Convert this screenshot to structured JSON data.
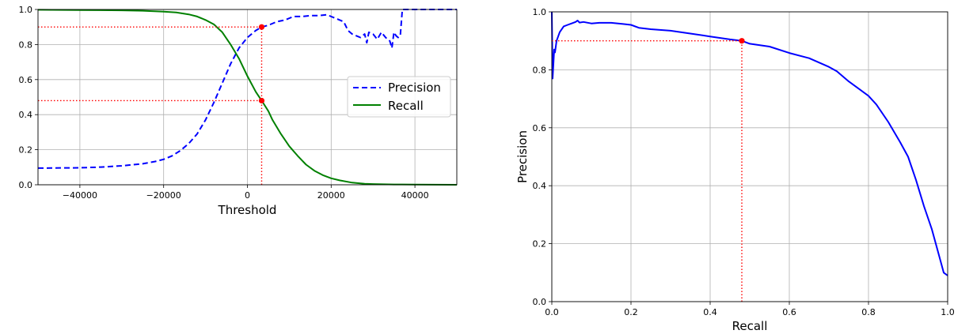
{
  "chart_data": [
    {
      "type": "line",
      "xlabel": "Threshold",
      "ylabel": "",
      "xlim": [
        -50000,
        50000
      ],
      "ylim": [
        0,
        1
      ],
      "xticks": [
        -40000,
        -20000,
        0,
        20000,
        40000
      ],
      "xtick_labels": [
        "−40000",
        "−20000",
        "0",
        "20000",
        "40000"
      ],
      "yticks": [
        0,
        0.2,
        0.4,
        0.6,
        0.8,
        1.0
      ],
      "ytick_labels": [
        "0.0",
        "0.2",
        "0.4",
        "0.6",
        "0.8",
        "1.0"
      ],
      "grid": true,
      "legend_position": "center-right",
      "series": [
        {
          "name": "Precision",
          "color": "#0000ff",
          "style": "dashed",
          "x": [
            -50000,
            -40000,
            -35000,
            -30000,
            -25000,
            -22000,
            -20000,
            -18000,
            -16000,
            -14000,
            -12000,
            -10000,
            -8000,
            -6000,
            -4000,
            -2000,
            0,
            2000,
            3400,
            5000,
            7000,
            9000,
            11000,
            13000,
            15000,
            17000,
            19000,
            21000,
            23000,
            24000,
            25000,
            26000,
            27000,
            28000,
            28500,
            29000,
            30000,
            31000,
            32000,
            33000,
            34000,
            34500,
            35000,
            35500,
            36000,
            36500,
            37000,
            40000,
            45000,
            50000
          ],
          "y": [
            0.095,
            0.097,
            0.101,
            0.108,
            0.12,
            0.133,
            0.145,
            0.165,
            0.195,
            0.235,
            0.29,
            0.37,
            0.47,
            0.58,
            0.69,
            0.78,
            0.84,
            0.88,
            0.9,
            0.91,
            0.93,
            0.94,
            0.96,
            0.96,
            0.965,
            0.965,
            0.97,
            0.95,
            0.93,
            0.88,
            0.86,
            0.85,
            0.84,
            0.86,
            0.81,
            0.87,
            0.86,
            0.83,
            0.87,
            0.84,
            0.82,
            0.78,
            0.87,
            0.85,
            0.84,
            0.85,
            1.0,
            1.0,
            1.0,
            1.0
          ]
        },
        {
          "name": "Recall",
          "color": "#008000",
          "style": "solid",
          "x": [
            -50000,
            -40000,
            -30000,
            -25000,
            -20000,
            -17000,
            -14000,
            -12000,
            -10000,
            -8000,
            -6000,
            -4000,
            -2000,
            0,
            2000,
            3400,
            5000,
            6000,
            8000,
            10000,
            12000,
            14000,
            16000,
            18000,
            20000,
            22000,
            25000,
            28000,
            30000,
            35000,
            40000,
            45000,
            50000
          ],
          "y": [
            0.998,
            0.997,
            0.995,
            0.993,
            0.988,
            0.983,
            0.972,
            0.96,
            0.94,
            0.915,
            0.87,
            0.8,
            0.72,
            0.62,
            0.53,
            0.48,
            0.42,
            0.37,
            0.29,
            0.22,
            0.165,
            0.115,
            0.08,
            0.055,
            0.037,
            0.025,
            0.012,
            0.006,
            0.004,
            0.002,
            0.001,
            0.0005,
            0.0002
          ]
        }
      ],
      "markers": [
        {
          "x": 3400,
          "y": 0.9,
          "color": "#ff0000"
        },
        {
          "x": 3400,
          "y": 0.48,
          "color": "#ff0000"
        }
      ],
      "reference_lines": [
        {
          "kind": "vertical",
          "x": 3400,
          "y_from": 0,
          "y_to": 0.9,
          "color": "#ff0000",
          "style": "dotted"
        },
        {
          "kind": "horizontal",
          "y": 0.9,
          "x_from": -50000,
          "x_to": 3400,
          "color": "#ff0000",
          "style": "dotted"
        },
        {
          "kind": "horizontal",
          "y": 0.48,
          "x_from": -50000,
          "x_to": 3400,
          "color": "#ff0000",
          "style": "dotted"
        }
      ]
    },
    {
      "type": "line",
      "xlabel": "Recall",
      "ylabel": "Precision",
      "xlim": [
        0,
        1
      ],
      "ylim": [
        0,
        1
      ],
      "xticks": [
        0,
        0.2,
        0.4,
        0.6,
        0.8,
        1.0
      ],
      "xtick_labels": [
        "0.0",
        "0.2",
        "0.4",
        "0.6",
        "0.8",
        "1.0"
      ],
      "yticks": [
        0,
        0.2,
        0.4,
        0.6,
        0.8,
        1.0
      ],
      "ytick_labels": [
        "0.0",
        "0.2",
        "0.4",
        "0.6",
        "0.8",
        "1.0"
      ],
      "grid": true,
      "series": [
        {
          "color": "#0000ff",
          "style": "solid",
          "x": [
            0.0,
            0.002,
            0.004,
            0.006,
            0.008,
            0.012,
            0.02,
            0.03,
            0.04,
            0.05,
            0.06,
            0.065,
            0.07,
            0.08,
            0.1,
            0.12,
            0.15,
            0.18,
            0.2,
            0.22,
            0.25,
            0.3,
            0.35,
            0.4,
            0.45,
            0.48,
            0.5,
            0.55,
            0.6,
            0.65,
            0.7,
            0.72,
            0.75,
            0.78,
            0.8,
            0.82,
            0.85,
            0.88,
            0.9,
            0.92,
            0.94,
            0.96,
            0.98,
            0.99,
            1.0
          ],
          "y": [
            1.0,
            0.77,
            0.82,
            0.87,
            0.86,
            0.9,
            0.93,
            0.95,
            0.955,
            0.96,
            0.965,
            0.97,
            0.963,
            0.965,
            0.96,
            0.962,
            0.962,
            0.958,
            0.955,
            0.945,
            0.94,
            0.935,
            0.925,
            0.915,
            0.905,
            0.9,
            0.89,
            0.88,
            0.858,
            0.84,
            0.81,
            0.795,
            0.76,
            0.73,
            0.71,
            0.68,
            0.62,
            0.55,
            0.5,
            0.42,
            0.33,
            0.25,
            0.15,
            0.1,
            0.09
          ]
        }
      ],
      "markers": [
        {
          "x": 0.48,
          "y": 0.9,
          "color": "#ff0000"
        }
      ],
      "reference_lines": [
        {
          "kind": "vertical",
          "x": 0.48,
          "y_from": 0,
          "y_to": 0.9,
          "color": "#ff0000",
          "style": "dotted"
        },
        {
          "kind": "horizontal",
          "y": 0.9,
          "x_from": 0,
          "x_to": 0.48,
          "color": "#ff0000",
          "style": "dotted"
        }
      ]
    }
  ]
}
